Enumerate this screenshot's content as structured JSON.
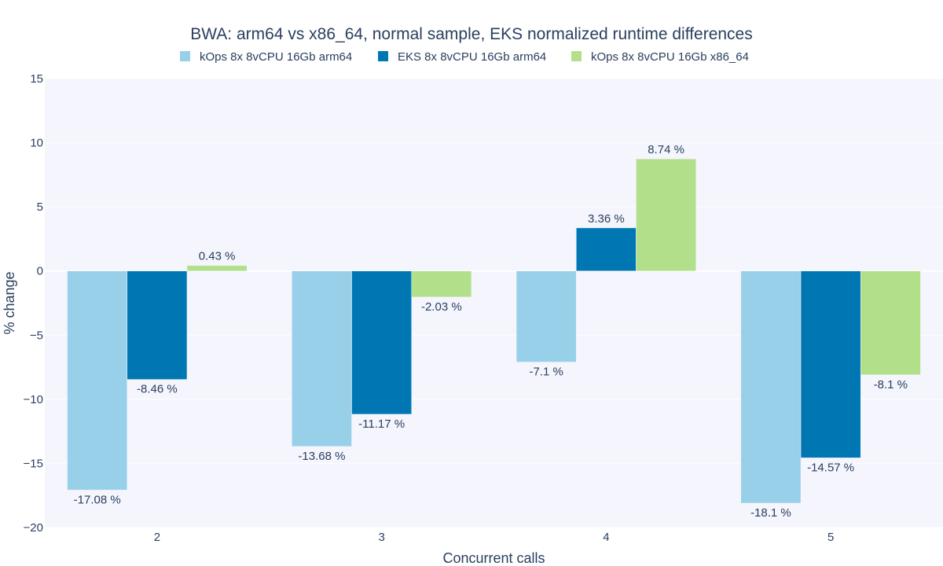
{
  "chart_data": {
    "type": "bar",
    "title": "BWA: arm64 vs x86_64, normal sample, EKS normalized runtime differences",
    "xlabel": "Concurrent calls",
    "ylabel": "% change",
    "categories": [
      "2",
      "3",
      "4",
      "5"
    ],
    "ylim": [
      -20,
      15
    ],
    "yticks": [
      15,
      10,
      5,
      0,
      -5,
      -10,
      -15,
      -20
    ],
    "ytick_labels": [
      "15",
      "10",
      "5",
      "0",
      "−5",
      "−10",
      "−15",
      "−20"
    ],
    "grid": true,
    "legend_position": "top",
    "series": [
      {
        "name": "kOps 8x 8vCPU 16Gb arm64",
        "color": "#98d0e9",
        "values": [
          -17.08,
          -13.68,
          -7.1,
          -18.1
        ],
        "labels": [
          "-17.08 %",
          "-13.68 %",
          "-7.1 %",
          "-18.1 %"
        ]
      },
      {
        "name": "EKS 8x 8vCPU 16Gb arm64",
        "color": "#0077b3",
        "values": [
          -8.46,
          -11.17,
          3.36,
          -14.57
        ],
        "labels": [
          "-8.46 %",
          "-11.17 %",
          "3.36 %",
          "-14.57 %"
        ]
      },
      {
        "name": "kOps 8x 8vCPU 16Gb x86_64",
        "color": "#b2df8a",
        "values": [
          0.43,
          -2.03,
          8.74,
          -8.1
        ],
        "labels": [
          "0.43 %",
          "-2.03 %",
          "8.74 %",
          "-8.1 %"
        ]
      }
    ],
    "plot_background": "#f4f5fd",
    "grid_color": "#ffffff",
    "text_color": "#2a3f5f"
  }
}
